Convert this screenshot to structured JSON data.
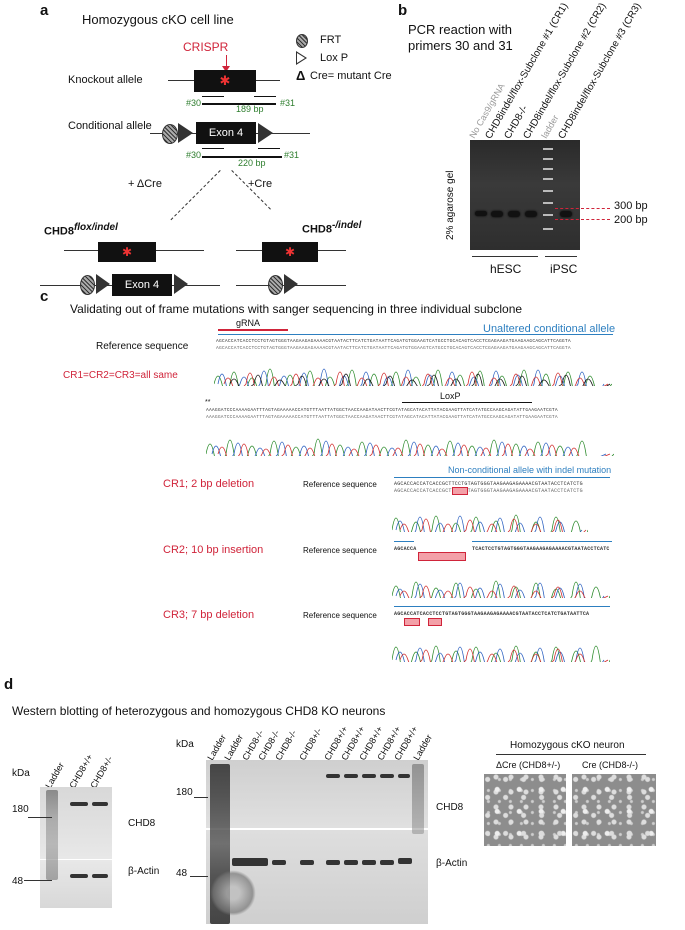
{
  "panel_a": {
    "label": "a",
    "title": "Homozygous cKO cell line",
    "crispr": "CRISPR",
    "legend": {
      "frt": "FRT",
      "loxp": "Lox P",
      "dcre": "Cre= mutant Cre",
      "delta": "Δ"
    },
    "knockout_allele": "Knockout allele",
    "conditional_allele": "Conditional allele",
    "exon": "Exon 4",
    "primer30": "#30",
    "primer31": "#31",
    "size_ko": "189 bp",
    "size_cond": "220 bp",
    "plus_dcre": "+ ΔCre",
    "plus_cre": "+Cre",
    "flox_base": "CHD8",
    "flox_sup": "flox/indel",
    "ko_base": "CHD8",
    "ko_sup": "-/indel"
  },
  "panel_b": {
    "label": "b",
    "title_line1": "PCR reaction with",
    "title_line2": "primers 30 and 31",
    "lanes": [
      "No Cas9/gRNA",
      "CHD8indel/flox-Subclone #1 (CR1)",
      "CHD8-/-",
      "CHD8indel/flox-Subclone #2 (CR2)",
      "ladder",
      "CHD8indel/flox-Subclone #3 (CR3)"
    ],
    "gel_label": "2% agarose gel",
    "marker_300": "300 bp",
    "marker_200": "200 bp",
    "group_hesc": "hESC",
    "group_ipsc": "iPSC"
  },
  "panel_c": {
    "label": "c",
    "title": "Validating out of frame mutations with sanger sequencing in three individual subclone",
    "grna": "gRNA",
    "unaltered": "Unaltered conditional allele",
    "ref_seq": "Reference sequence",
    "same": "CR1=CR2=CR3=all same",
    "loxp": "LoxP",
    "nonconditional": "Non-conditional allele with indel mutation",
    "cr1": "CR1; 2 bp deletion",
    "cr2": "CR2; 10 bp insertion",
    "cr3": "CR3; 7 bp deletion",
    "seq1": "AGCACCATCACCTCCTGTAGTGGGTAAGAAGAGAAAACGTAATACTTCATCTGATAATTCAGATGTGGAAGTCATGCCTGCACAGTCACCTCGAGAAGATGAAGAAGCAGCATTCAGGTA",
    "seq2": "AAAGGATCCCAAAAGAATTTAGTAGAAAAACCATGTTTAATTATGGCTAACCAAGATAACTTCGTATAGCATACATTATACGAAGTTATCATATGCCAAGCAGATATTGAAGAATCGTA",
    "seq_cr1": "AGCACCACCATCACCGCTTCCTGTAGTGGGTAAGAAGAGAAAACGTAATACCTCATCTG",
    "seq_cr2a": "AGCACCA",
    "seq_cr2b": "TCACTCCTGTAGTGGGTAAGAAGAGAAAACGTAATACCTCATC",
    "seq_cr3": "AGCACCATCACCTCCTGTAGTGGGTAAGAAGAGAAAACGTAATACCTCATCTGATAATTCA"
  },
  "panel_d": {
    "label": "d",
    "title": "Western blotting of heterozygous and homozygous CHD8 KO neurons",
    "kda": "kDa",
    "mw180": "180",
    "mw48": "48",
    "left_lanes": [
      "Ladder",
      "CHD8+/+",
      "CHD8+/-"
    ],
    "mid_lanes": [
      "Ladder",
      "Ladder",
      "CHD8-/-",
      "CHD8-/-",
      "CHD8-/-",
      "CHD8+/-",
      "CHD8+/+",
      "CHD8+/+",
      "CHD8+/+",
      "CHD8+/+",
      "CHD8+/+",
      "Ladder"
    ],
    "chd8": "CHD8",
    "actin": "β-Actin",
    "neuron_title": "Homozygous cKO neuron",
    "dcre_label": "ΔCre (CHD8+/-)",
    "cre_label": "Cre (CHD8-/-)"
  }
}
